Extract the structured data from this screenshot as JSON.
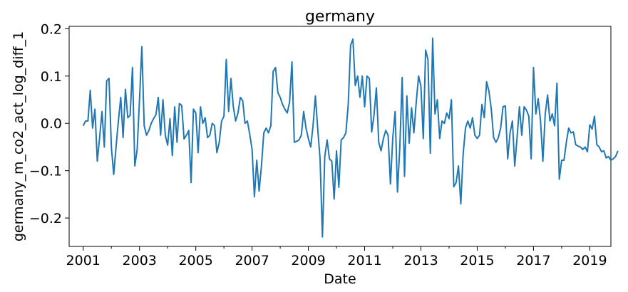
{
  "chart_data": {
    "type": "line",
    "title": "germany",
    "xlabel": "Date",
    "ylabel": "germany_m_co2_act_log_diff_1",
    "xlim": [
      "2000-07-01",
      "2019-10-01"
    ],
    "ylim": [
      -0.26,
      0.205
    ],
    "grid": false,
    "x_tick_labels": [
      "2001",
      "2003",
      "2005",
      "2007",
      "2009",
      "2011",
      "2013",
      "2015",
      "2017",
      "2019"
    ],
    "y_tick_labels": [
      "0.2",
      "0.1",
      "0.0",
      "−0.1",
      "−0.2"
    ],
    "y_ticks": [
      0.2,
      0.1,
      0.0,
      -0.1,
      -0.2
    ],
    "line_color": "#1f77b4",
    "x_start": "2001-01",
    "x_frequency": "monthly",
    "series": [
      {
        "values": [
          -0.005,
          0.005,
          0.005,
          0.07,
          -0.01,
          0.03,
          -0.08,
          -0.03,
          0.025,
          -0.05,
          0.09,
          0.095,
          -0.05,
          -0.108,
          -0.05,
          0.005,
          0.055,
          -0.03,
          0.072,
          0.012,
          0.017,
          0.118,
          -0.09,
          -0.055,
          0.05,
          0.162,
          -0.005,
          -0.025,
          -0.015,
          0.0,
          0.01,
          0.018,
          0.055,
          -0.025,
          0.05,
          -0.025,
          -0.046,
          0.01,
          -0.068,
          0.035,
          -0.04,
          0.042,
          0.038,
          -0.033,
          -0.025,
          -0.015,
          -0.125,
          0.03,
          0.022,
          -0.062,
          0.035,
          0.0,
          0.012,
          -0.03,
          -0.025,
          0.0,
          -0.005,
          -0.062,
          -0.04,
          0.005,
          0.015,
          0.135,
          0.025,
          0.095,
          0.035,
          0.005,
          0.022,
          0.055,
          0.048,
          0.0,
          0.005,
          -0.023,
          -0.055,
          -0.155,
          -0.078,
          -0.143,
          -0.09,
          -0.02,
          -0.01,
          -0.02,
          -0.005,
          0.11,
          0.118,
          0.065,
          0.055,
          0.04,
          0.03,
          0.022,
          0.045,
          0.13,
          -0.04,
          -0.038,
          -0.035,
          -0.025,
          0.025,
          -0.01,
          -0.032,
          -0.05,
          -0.005,
          0.058,
          -0.012,
          -0.075,
          -0.24,
          -0.07,
          -0.035,
          -0.075,
          -0.08,
          -0.16,
          -0.058,
          -0.135,
          -0.035,
          -0.03,
          -0.02,
          0.04,
          0.165,
          0.178,
          0.08,
          0.1,
          0.055,
          0.1,
          0.035,
          0.1,
          0.095,
          -0.018,
          0.018,
          0.075,
          -0.04,
          -0.058,
          -0.032,
          -0.015,
          -0.025,
          -0.128,
          -0.03,
          0.025,
          -0.145,
          -0.05,
          0.097,
          -0.112,
          0.058,
          -0.042,
          0.033,
          -0.02,
          0.045,
          0.1,
          0.078,
          -0.032,
          0.155,
          0.135,
          -0.063,
          0.18,
          0.02,
          0.05,
          -0.032,
          0.005,
          0.0,
          0.022,
          0.01,
          0.05,
          -0.134,
          -0.125,
          -0.09,
          -0.17,
          -0.065,
          -0.01,
          0.005,
          -0.01,
          0.012,
          -0.025,
          -0.032,
          -0.025,
          0.04,
          0.012,
          0.088,
          0.068,
          0.03,
          -0.03,
          -0.04,
          -0.03,
          -0.01,
          0.035,
          0.037,
          -0.075,
          -0.02,
          0.005,
          -0.09,
          -0.03,
          0.035,
          -0.025,
          0.035,
          0.028,
          0.015,
          -0.075,
          0.118,
          0.02,
          0.052,
          0.005,
          -0.08,
          0.02,
          0.06,
          0.005,
          0.02,
          -0.005,
          0.085,
          -0.118,
          -0.078,
          -0.078,
          -0.04,
          -0.01,
          -0.02,
          -0.018,
          -0.045,
          -0.048,
          -0.05,
          -0.055,
          -0.05,
          -0.06,
          -0.003,
          -0.012,
          0.015,
          -0.045,
          -0.05,
          -0.06,
          -0.058,
          -0.073,
          -0.07,
          -0.078,
          -0.075,
          -0.07,
          -0.058
        ]
      }
    ]
  }
}
